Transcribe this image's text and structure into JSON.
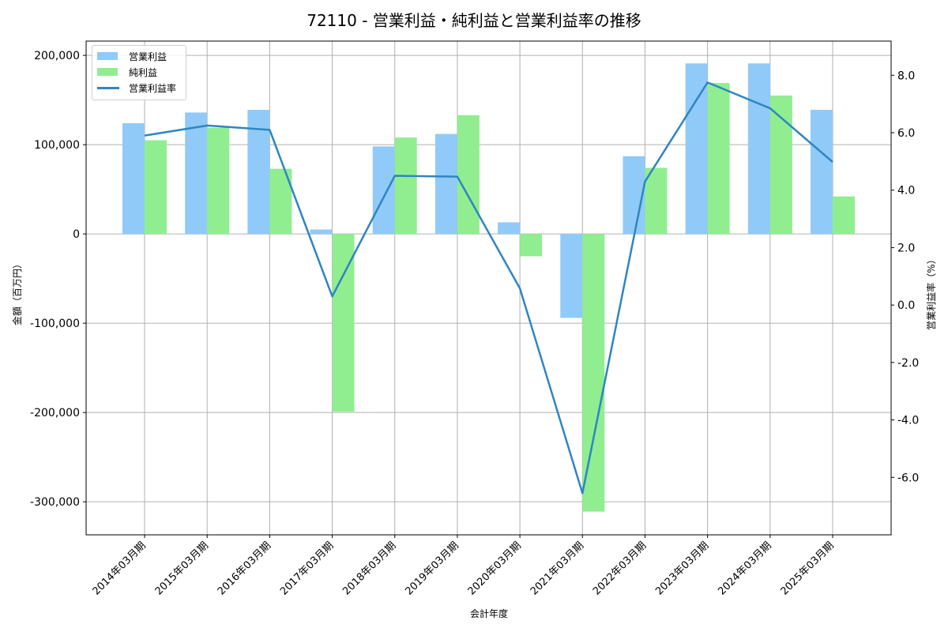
{
  "chart_data": {
    "type": "bar+line",
    "title": "72110 - 営業利益・純利益と営業利益率の推移",
    "xlabel": "会計年度",
    "ylabel": "金額（百万円）",
    "y2label": "営業利益率（%）",
    "categories": [
      "2014年03月期",
      "2015年03月期",
      "2016年03月期",
      "2017年03月期",
      "2018年03月期",
      "2019年03月期",
      "2020年03月期",
      "2021年03月期",
      "2022年03月期",
      "2023年03月期",
      "2024年03月期",
      "2025年03月期"
    ],
    "series": [
      {
        "name": "営業利益",
        "type": "bar",
        "axis": "left",
        "color": "#90caf9",
        "values": [
          124000,
          136000,
          139000,
          5000,
          98000,
          112000,
          13000,
          -94000,
          87000,
          191000,
          191000,
          139000
        ]
      },
      {
        "name": "純利益",
        "type": "bar",
        "axis": "left",
        "color": "#90ee90",
        "values": [
          105000,
          119000,
          73000,
          -199000,
          108000,
          133000,
          -25000,
          -311000,
          74000,
          169000,
          155000,
          42000
        ]
      },
      {
        "name": "営業利益率",
        "type": "line",
        "axis": "right",
        "color": "#2e86c1",
        "values": [
          5.9,
          6.25,
          6.1,
          0.3,
          4.5,
          4.47,
          0.58,
          -6.55,
          4.3,
          7.75,
          6.85,
          4.98
        ]
      }
    ],
    "ylim": [
      -337000,
      216000
    ],
    "y2lim": [
      -8.0,
      9.19
    ],
    "yticks": [
      -300000,
      -200000,
      -100000,
      0,
      100000,
      200000
    ],
    "ytick_labels": [
      "-300,000",
      "-200,000",
      "-100,000",
      "0",
      "100,000",
      "200,000"
    ],
    "y2ticks": [
      -6,
      -4,
      -2,
      0,
      2,
      4,
      6,
      8
    ],
    "y2tick_labels": [
      "-6.0",
      "-4.0",
      "-2.0",
      "0.0",
      "2.0",
      "4.0",
      "6.0",
      "8.0"
    ],
    "grid": true,
    "legend_position": "upper left"
  },
  "legend": {
    "items": [
      "営業利益",
      "純利益",
      "営業利益率"
    ]
  }
}
